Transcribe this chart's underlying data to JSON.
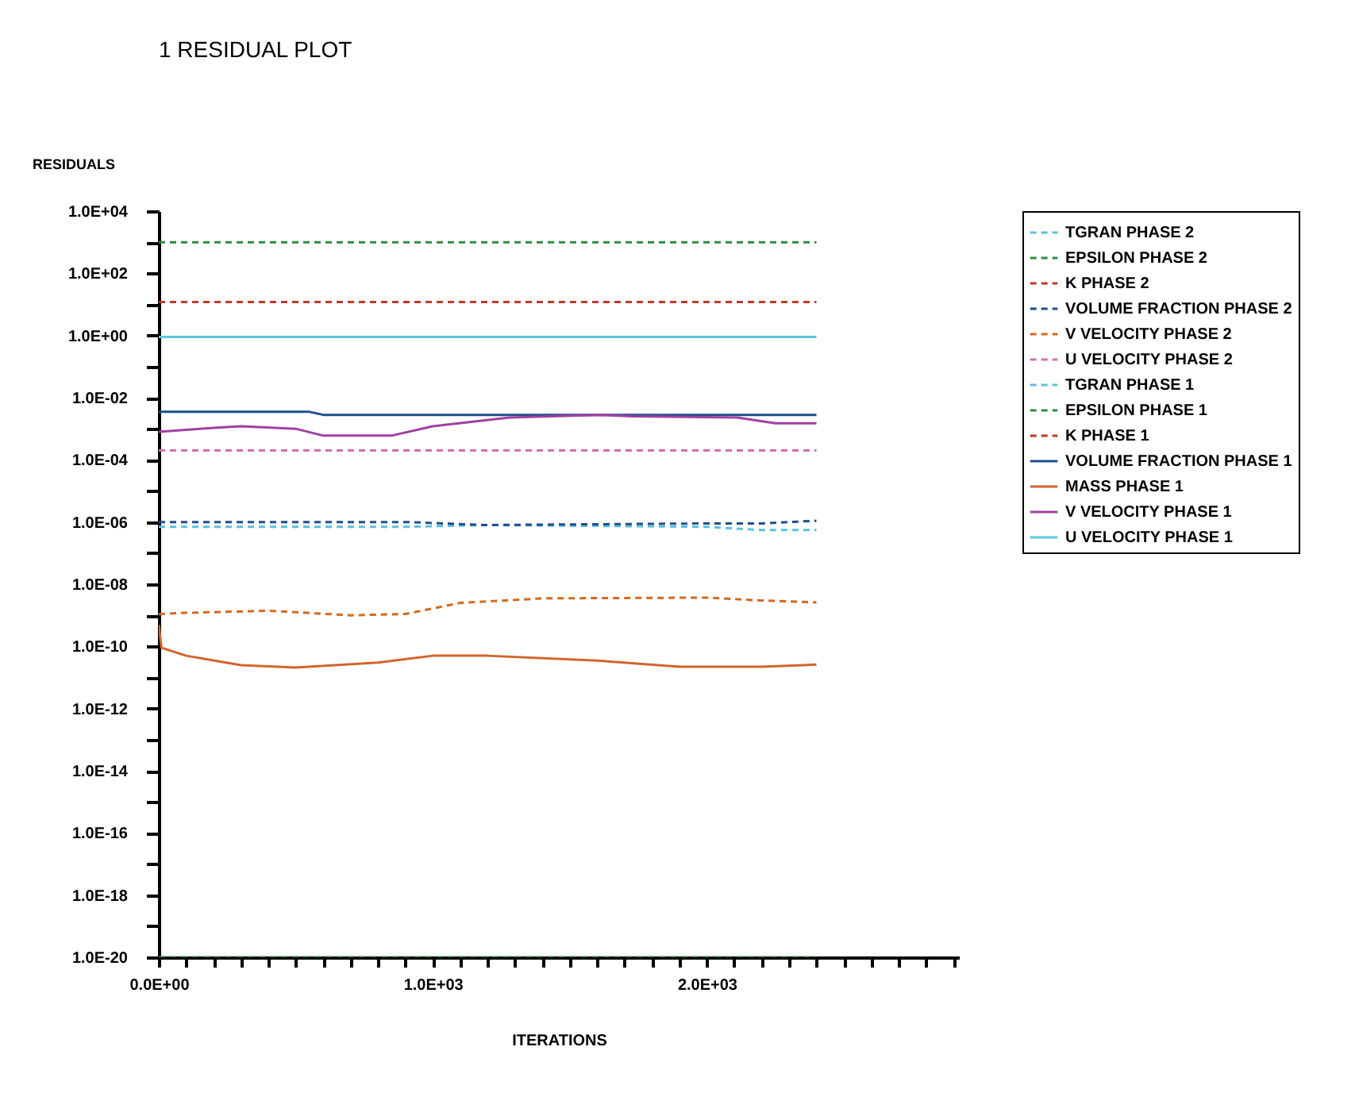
{
  "chart_data": {
    "type": "line",
    "title": "1 RESIDUAL PLOT",
    "xlabel": "ITERATIONS",
    "ylabel": "RESIDUALS",
    "log": "y",
    "legend": "right",
    "grid": false,
    "xlim": [
      0,
      2920
    ],
    "xticks": [
      {
        "value": 0,
        "label": "0.0E+00"
      },
      {
        "value": 100,
        "label": null
      },
      {
        "value": 200,
        "label": null
      },
      {
        "value": 300,
        "label": null
      },
      {
        "value": 400,
        "label": null
      },
      {
        "value": 500,
        "label": null
      },
      {
        "value": 600,
        "label": null
      },
      {
        "value": 700,
        "label": null
      },
      {
        "value": 800,
        "label": null
      },
      {
        "value": 900,
        "label": null
      },
      {
        "value": 1000,
        "label": "1.0E+03"
      },
      {
        "value": 1100,
        "label": null
      },
      {
        "value": 1200,
        "label": null
      },
      {
        "value": 1300,
        "label": null
      },
      {
        "value": 1400,
        "label": null
      },
      {
        "value": 1500,
        "label": null
      },
      {
        "value": 1600,
        "label": null
      },
      {
        "value": 1700,
        "label": null
      },
      {
        "value": 1800,
        "label": null
      },
      {
        "value": 1900,
        "label": null
      },
      {
        "value": 2000,
        "label": "2.0E+03"
      },
      {
        "value": 2100,
        "label": null
      },
      {
        "value": 2200,
        "label": null
      },
      {
        "value": 2300,
        "label": null
      },
      {
        "value": 2400,
        "label": null
      },
      {
        "value": 2500,
        "label": null
      },
      {
        "value": 2600,
        "label": null
      },
      {
        "value": 2700,
        "label": null
      },
      {
        "value": 2800,
        "label": null
      },
      {
        "value": 2900,
        "label": null
      }
    ],
    "ylim": [
      1e-20,
      10000.0
    ],
    "yticks": [
      {
        "value": 10000.0,
        "label": "1.0E+04"
      },
      {
        "value": 1000.0,
        "label": null
      },
      {
        "value": 100.0,
        "label": "1.0E+02"
      },
      {
        "value": 10.0,
        "label": null
      },
      {
        "value": 1,
        "label": "1.0E+00"
      },
      {
        "value": 0.1,
        "label": null
      },
      {
        "value": 0.01,
        "label": "1.0E-02"
      },
      {
        "value": 0.001,
        "label": null
      },
      {
        "value": 0.0001,
        "label": "1.0E-04"
      },
      {
        "value": 1e-05,
        "label": null
      },
      {
        "value": 1e-06,
        "label": "1.0E-06"
      },
      {
        "value": 1e-07,
        "label": null
      },
      {
        "value": 1e-08,
        "label": "1.0E-08"
      },
      {
        "value": 1e-09,
        "label": null
      },
      {
        "value": 1e-10,
        "label": "1.0E-10"
      },
      {
        "value": 1e-11,
        "label": null
      },
      {
        "value": 1e-12,
        "label": "1.0E-12"
      },
      {
        "value": 1e-13,
        "label": null
      },
      {
        "value": 1e-14,
        "label": "1.0E-14"
      },
      {
        "value": 1e-15,
        "label": null
      },
      {
        "value": 1e-16,
        "label": "1.0E-16"
      },
      {
        "value": 1e-17,
        "label": null
      },
      {
        "value": 1e-18,
        "label": "1.0E-18"
      },
      {
        "value": 1e-19,
        "label": null
      },
      {
        "value": 1e-20,
        "label": "1.0E-20"
      }
    ],
    "series": [
      {
        "name": "TGRAN PHASE 2",
        "color": "#5bc0de",
        "line_style": "dashed",
        "x": [
          0,
          900,
          1200,
          2000,
          2200,
          2400
        ],
        "values": [
          7e-07,
          7e-07,
          8e-07,
          7e-07,
          5.5e-07,
          5.5e-07
        ]
      },
      {
        "name": "EPSILON PHASE 2",
        "color": "#2e8b3e",
        "line_style": "dashed",
        "x": [
          0,
          2400
        ],
        "values": [
          1000,
          1000
        ]
      },
      {
        "name": "K PHASE 2",
        "color": "#c0392b",
        "line_style": "dashed",
        "x": [
          0,
          2400
        ],
        "values": [
          12,
          12
        ]
      },
      {
        "name": "VOLUME FRACTION PHASE 2",
        "color": "#1f4e8c",
        "line_style": "dashed",
        "x": [
          0,
          900,
          1200,
          2000,
          2200,
          2400
        ],
        "values": [
          1e-06,
          1e-06,
          8e-07,
          9e-07,
          9e-07,
          1.1e-06
        ]
      },
      {
        "name": "V VELOCITY PHASE 2",
        "color": "#d2691e",
        "line_style": "dashed",
        "x": [
          0,
          100,
          400,
          700,
          900,
          1100,
          1400,
          2000,
          2200,
          2400
        ],
        "values": [
          1.1e-09,
          1.2e-09,
          1.4e-09,
          1e-09,
          1.1e-09,
          2.5e-09,
          3.5e-09,
          3.7e-09,
          3e-09,
          2.6e-09
        ]
      },
      {
        "name": "U VELOCITY PHASE 2",
        "color": "#d070b0",
        "line_style": "dashed",
        "x": [
          0,
          2400
        ],
        "values": [
          0.0002,
          0.0002
        ]
      },
      {
        "name": "TGRAN PHASE 1",
        "color": "#5bc0de",
        "line_style": "dashed"
      },
      {
        "name": "EPSILON PHASE 1",
        "color": "#2e8b3e",
        "line_style": "dashed",
        "x": [
          0,
          2400
        ],
        "values": [
          1e-20,
          1e-20
        ]
      },
      {
        "name": "K PHASE 1",
        "color": "#c0392b",
        "line_style": "dashed"
      },
      {
        "name": "VOLUME FRACTION PHASE 1",
        "color": "#1f4e8c",
        "line_style": "solid",
        "x": [
          0,
          550,
          600,
          2400
        ],
        "values": [
          0.0035,
          0.0035,
          0.0028,
          0.0028
        ]
      },
      {
        "name": "MASS PHASE 1",
        "color": "#d2642c",
        "line_style": "solid",
        "x": [
          0,
          10,
          100,
          300,
          500,
          800,
          1000,
          1200,
          1600,
          1900,
          2200,
          2400
        ],
        "values": [
          5e-10,
          9e-11,
          5e-11,
          2.5e-11,
          2.1e-11,
          3e-11,
          5e-11,
          5e-11,
          3.5e-11,
          2.2e-11,
          2.2e-11,
          2.6e-11
        ]
      },
      {
        "name": "V VELOCITY PHASE 1",
        "color": "#a040a0",
        "line_style": "solid",
        "x": [
          0,
          150,
          300,
          500,
          600,
          850,
          1000,
          1280,
          1610,
          1730,
          2110,
          2250,
          2400
        ],
        "values": [
          0.0008,
          0.001,
          0.0012,
          0.001,
          0.0006,
          0.0006,
          0.0012,
          0.0023,
          0.0028,
          0.0025,
          0.0023,
          0.0015,
          0.0015
        ]
      },
      {
        "name": "U VELOCITY PHASE 1",
        "color": "#5bc8e0",
        "line_style": "solid",
        "x": [
          0,
          2400
        ],
        "values": [
          0.9,
          0.9
        ]
      }
    ]
  }
}
